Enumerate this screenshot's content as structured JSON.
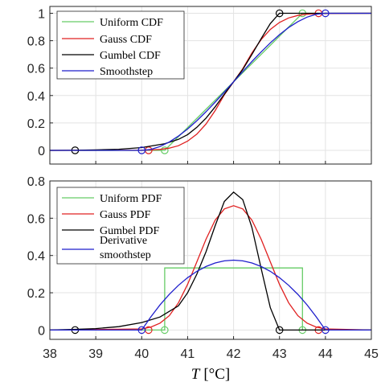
{
  "chart_data": [
    {
      "type": "line",
      "xlim": [
        38,
        45
      ],
      "ylim": [
        -0.1,
        1.05
      ],
      "yticks": [
        "0",
        "0.2",
        "0.4",
        "0.6",
        "0.8",
        "1"
      ],
      "grid": true,
      "legend_position": "top-left",
      "series": [
        {
          "name": "Uniform CDF",
          "color": "#66cc66",
          "x": [
            38,
            40.5,
            43.5,
            45
          ],
          "y": [
            0,
            0,
            1,
            1
          ],
          "markers": [
            [
              40.5,
              0
            ],
            [
              43.5,
              1
            ]
          ]
        },
        {
          "name": "Gauss CDF",
          "color": "#e02020",
          "x": [
            38,
            40.0,
            40.2,
            40.4,
            40.6,
            40.8,
            41.0,
            41.2,
            41.4,
            41.6,
            41.8,
            42.0,
            42.2,
            42.4,
            42.6,
            42.8,
            43.0,
            43.2,
            43.4,
            43.6,
            43.8,
            44.0,
            45
          ],
          "y": [
            0,
            0.0009,
            0.0026,
            0.0068,
            0.016,
            0.034,
            0.067,
            0.118,
            0.192,
            0.29,
            0.405,
            0.5,
            0.595,
            0.71,
            0.808,
            0.882,
            0.933,
            0.966,
            0.984,
            0.9932,
            0.9974,
            0.9991,
            1
          ],
          "markers": [
            [
              40.15,
              0
            ],
            [
              43.85,
              1
            ]
          ]
        },
        {
          "name": "Gumbel CDF",
          "color": "#000000",
          "x": [
            38,
            38.5,
            39.0,
            39.5,
            40.0,
            40.5,
            40.8,
            41.0,
            41.2,
            41.4,
            41.6,
            41.8,
            42.0,
            42.2,
            42.4,
            42.6,
            42.8,
            43.0,
            45
          ],
          "y": [
            0,
            0.0005,
            0.003,
            0.008,
            0.02,
            0.048,
            0.08,
            0.115,
            0.168,
            0.235,
            0.318,
            0.41,
            0.5,
            0.59,
            0.7,
            0.815,
            0.925,
            1.0,
            1
          ],
          "markers": [
            [
              38.55,
              0
            ],
            [
              43.0,
              1
            ]
          ]
        },
        {
          "name": "Smoothstep",
          "color": "#1f1fcc",
          "x": [
            38,
            40,
            40.2,
            40.4,
            40.6,
            40.8,
            41.0,
            41.2,
            41.4,
            41.6,
            41.8,
            42.0,
            42.2,
            42.4,
            42.6,
            42.8,
            43.0,
            43.2,
            43.4,
            43.6,
            43.8,
            44,
            45
          ],
          "y": [
            0,
            0,
            0.007,
            0.028,
            0.061,
            0.104,
            0.156,
            0.216,
            0.282,
            0.352,
            0.425,
            0.5,
            0.575,
            0.648,
            0.718,
            0.784,
            0.844,
            0.896,
            0.939,
            0.972,
            0.993,
            1,
            1
          ],
          "markers": [
            [
              40.0,
              0
            ],
            [
              44.0,
              1
            ]
          ]
        }
      ]
    },
    {
      "type": "line",
      "xlim": [
        38,
        45
      ],
      "ylim": [
        -0.05,
        0.8
      ],
      "xticks": [
        "38",
        "39",
        "40",
        "41",
        "42",
        "43",
        "44",
        "45"
      ],
      "yticks": [
        "0",
        "0.2",
        "0.4",
        "0.6",
        "0.8"
      ],
      "xlabel_italic": "T",
      "xlabel_unit": "[°C]",
      "grid": true,
      "legend_position": "top-left",
      "series": [
        {
          "name": "Uniform PDF",
          "color": "#66cc66",
          "x": [
            38,
            40.5,
            40.5,
            43.5,
            43.5,
            45
          ],
          "y": [
            0,
            0,
            0.333,
            0.333,
            0,
            0
          ],
          "markers": [
            [
              40.5,
              0
            ],
            [
              43.5,
              0
            ]
          ]
        },
        {
          "name": "Gauss PDF",
          "color": "#e02020",
          "x": [
            38,
            40.0,
            40.2,
            40.4,
            40.6,
            40.8,
            41.0,
            41.2,
            41.4,
            41.6,
            41.8,
            42.0,
            42.2,
            42.4,
            42.6,
            42.8,
            43.0,
            43.2,
            43.4,
            43.6,
            43.8,
            44.0,
            45
          ],
          "y": [
            0,
            0.006,
            0.016,
            0.037,
            0.077,
            0.146,
            0.245,
            0.366,
            0.487,
            0.59,
            0.65,
            0.667,
            0.65,
            0.59,
            0.487,
            0.366,
            0.245,
            0.146,
            0.077,
            0.037,
            0.016,
            0.006,
            0
          ],
          "markers": [
            [
              40.15,
              0
            ],
            [
              43.85,
              0
            ]
          ]
        },
        {
          "name": "Gumbel PDF",
          "color": "#000000",
          "x": [
            38,
            38.5,
            39.0,
            39.5,
            40.0,
            40.4,
            40.8,
            41.0,
            41.2,
            41.4,
            41.6,
            41.8,
            42.0,
            42.2,
            42.4,
            42.6,
            42.8,
            43.0,
            45
          ],
          "y": [
            0,
            0.003,
            0.008,
            0.018,
            0.04,
            0.07,
            0.13,
            0.2,
            0.3,
            0.42,
            0.56,
            0.69,
            0.74,
            0.7,
            0.55,
            0.33,
            0.12,
            0.0,
            0
          ],
          "markers": [
            [
              38.55,
              0
            ],
            [
              43.0,
              0
            ]
          ]
        },
        {
          "name": "Derivative smoothstep",
          "legend_lines": [
            "Derivative",
            "smoothstep"
          ],
          "color": "#1f1fcc",
          "x": [
            38,
            40,
            40.2,
            40.4,
            40.6,
            40.8,
            41.0,
            41.2,
            41.4,
            41.6,
            41.8,
            42.0,
            42.2,
            42.4,
            42.6,
            42.8,
            43.0,
            43.2,
            43.4,
            43.6,
            43.8,
            44,
            45
          ],
          "y": [
            0,
            0,
            0.071,
            0.135,
            0.191,
            0.24,
            0.281,
            0.315,
            0.341,
            0.36,
            0.371,
            0.375,
            0.371,
            0.36,
            0.341,
            0.315,
            0.281,
            0.24,
            0.191,
            0.135,
            0.071,
            0,
            0
          ],
          "markers": [
            [
              40.0,
              0
            ],
            [
              44.0,
              0
            ]
          ]
        }
      ]
    }
  ]
}
